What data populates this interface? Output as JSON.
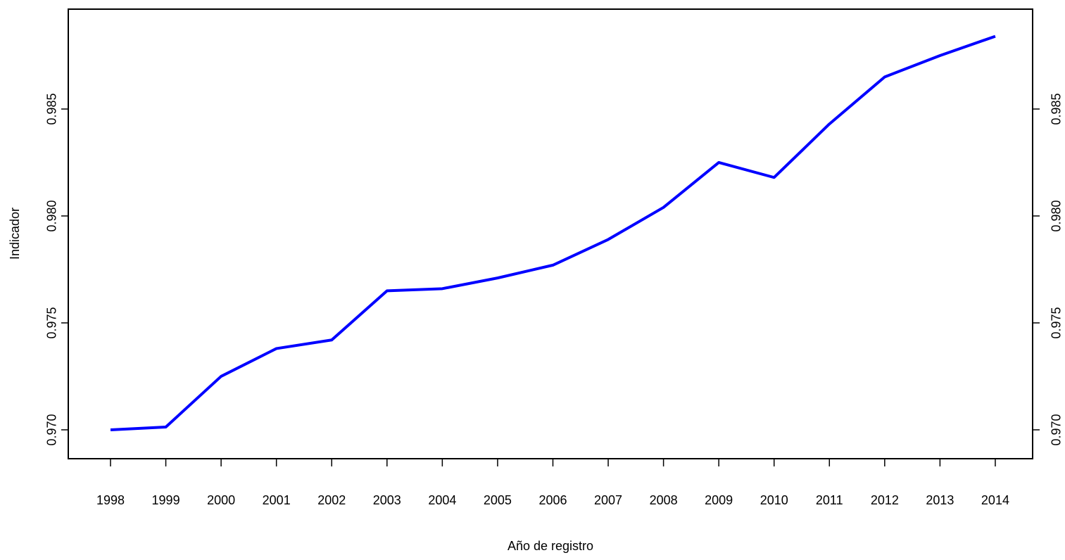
{
  "chart_data": {
    "type": "line",
    "xlabel": "Año de registro",
    "ylabel": "Indicador",
    "categories": [
      "1998",
      "1999",
      "2000",
      "2001",
      "2002",
      "2003",
      "2004",
      "2005",
      "2006",
      "2007",
      "2008",
      "2009",
      "2010",
      "2011",
      "2012",
      "2013",
      "2014"
    ],
    "series": [
      {
        "color": "#0000ff",
        "values": [
          0.97,
          0.97013,
          0.9725,
          0.9738,
          0.9742,
          0.9765,
          0.9766,
          0.9771,
          0.9777,
          0.9789,
          0.9804,
          0.9825,
          0.9818,
          0.9843,
          0.9865,
          0.9875,
          0.9884
        ]
      }
    ],
    "ylim": [
      0.96865,
      0.98967
    ],
    "yticks": [
      {
        "value": 0.97,
        "label": "0.970"
      },
      0.975,
      {
        "value": 0.98,
        "label": "0.980"
      },
      0.985
    ],
    "y2lim": [
      0.96865,
      0.98967
    ],
    "y2ticks": [
      {
        "value": 0.97,
        "label": "0.970"
      },
      0.975,
      {
        "value": 0.98,
        "label": "0.980"
      },
      0.985
    ]
  }
}
